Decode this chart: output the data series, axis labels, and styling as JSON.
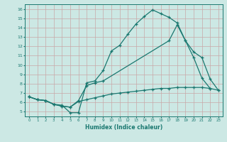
{
  "xlabel": "Humidex (Indice chaleur)",
  "bg_color": "#cce8e4",
  "grid_color": "#c8a8a8",
  "line_color": "#1a7870",
  "xlim": [
    -0.5,
    23.5
  ],
  "ylim": [
    4.5,
    16.5
  ],
  "xticks": [
    0,
    1,
    2,
    3,
    4,
    5,
    6,
    7,
    8,
    9,
    10,
    11,
    12,
    13,
    14,
    15,
    16,
    17,
    18,
    19,
    20,
    21,
    22,
    23
  ],
  "yticks": [
    5,
    6,
    7,
    8,
    9,
    10,
    11,
    12,
    13,
    14,
    15,
    16
  ],
  "curve1_x": [
    0,
    1,
    2,
    3,
    4,
    5,
    6,
    7,
    8,
    9,
    10,
    11,
    12,
    13,
    14,
    15,
    16,
    17,
    18,
    19,
    20,
    21,
    22
  ],
  "curve1_y": [
    6.6,
    6.3,
    6.2,
    5.8,
    5.7,
    4.9,
    4.9,
    8.1,
    8.3,
    9.4,
    11.5,
    12.1,
    13.3,
    14.4,
    15.2,
    15.9,
    15.5,
    15.1,
    14.5,
    12.6,
    10.8,
    8.6,
    7.5
  ],
  "curve2_x": [
    0,
    1,
    2,
    3,
    4,
    5,
    6,
    7,
    8,
    9,
    17,
    18,
    19,
    20,
    21,
    22,
    23
  ],
  "curve2_y": [
    6.6,
    6.3,
    6.2,
    5.8,
    5.6,
    5.5,
    6.2,
    7.8,
    8.1,
    8.3,
    12.6,
    14.3,
    12.6,
    11.4,
    10.8,
    8.5,
    7.3
  ],
  "curve3_x": [
    0,
    1,
    2,
    3,
    4,
    5,
    6,
    7,
    8,
    9,
    10,
    11,
    12,
    13,
    14,
    15,
    16,
    17,
    18,
    19,
    20,
    21,
    22,
    23
  ],
  "curve3_y": [
    6.6,
    6.3,
    6.2,
    5.8,
    5.6,
    5.5,
    6.1,
    6.3,
    6.5,
    6.7,
    6.9,
    7.0,
    7.1,
    7.2,
    7.3,
    7.4,
    7.5,
    7.5,
    7.6,
    7.6,
    7.6,
    7.6,
    7.5,
    7.3
  ]
}
